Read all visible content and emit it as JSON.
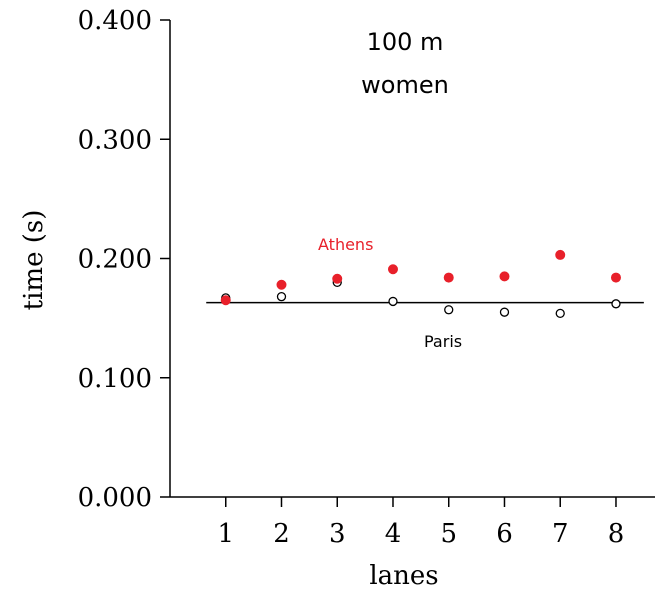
{
  "chart_data": {
    "type": "scatter",
    "title": [
      "100 m",
      "women"
    ],
    "xlabel": "lanes",
    "ylabel": "time (s)",
    "x_ticks": [
      "1",
      "2",
      "3",
      "4",
      "5",
      "6",
      "7",
      "8"
    ],
    "y_ticks": [
      "0.000",
      "0.100",
      "0.200",
      "0.300",
      "0.400"
    ],
    "xlim": [
      0,
      8.7
    ],
    "ylim": [
      0,
      0.4
    ],
    "grid": false,
    "series": [
      {
        "name": "Athens",
        "marker": "filled-circle",
        "color": "#e8202a",
        "x": [
          1,
          2,
          3,
          4,
          5,
          6,
          7,
          8
        ],
        "y": [
          0.165,
          0.178,
          0.183,
          0.191,
          0.184,
          0.185,
          0.203,
          0.184
        ]
      },
      {
        "name": "Paris",
        "marker": "open-circle",
        "color": "#000000",
        "x": [
          1,
          2,
          3,
          4,
          5,
          6,
          7,
          8
        ],
        "y": [
          0.167,
          0.168,
          0.18,
          0.164,
          0.157,
          0.155,
          0.154,
          0.162
        ]
      }
    ],
    "reference_line": {
      "y": 0.163,
      "x_range": [
        0.65,
        8.5
      ],
      "color": "#000000"
    }
  }
}
